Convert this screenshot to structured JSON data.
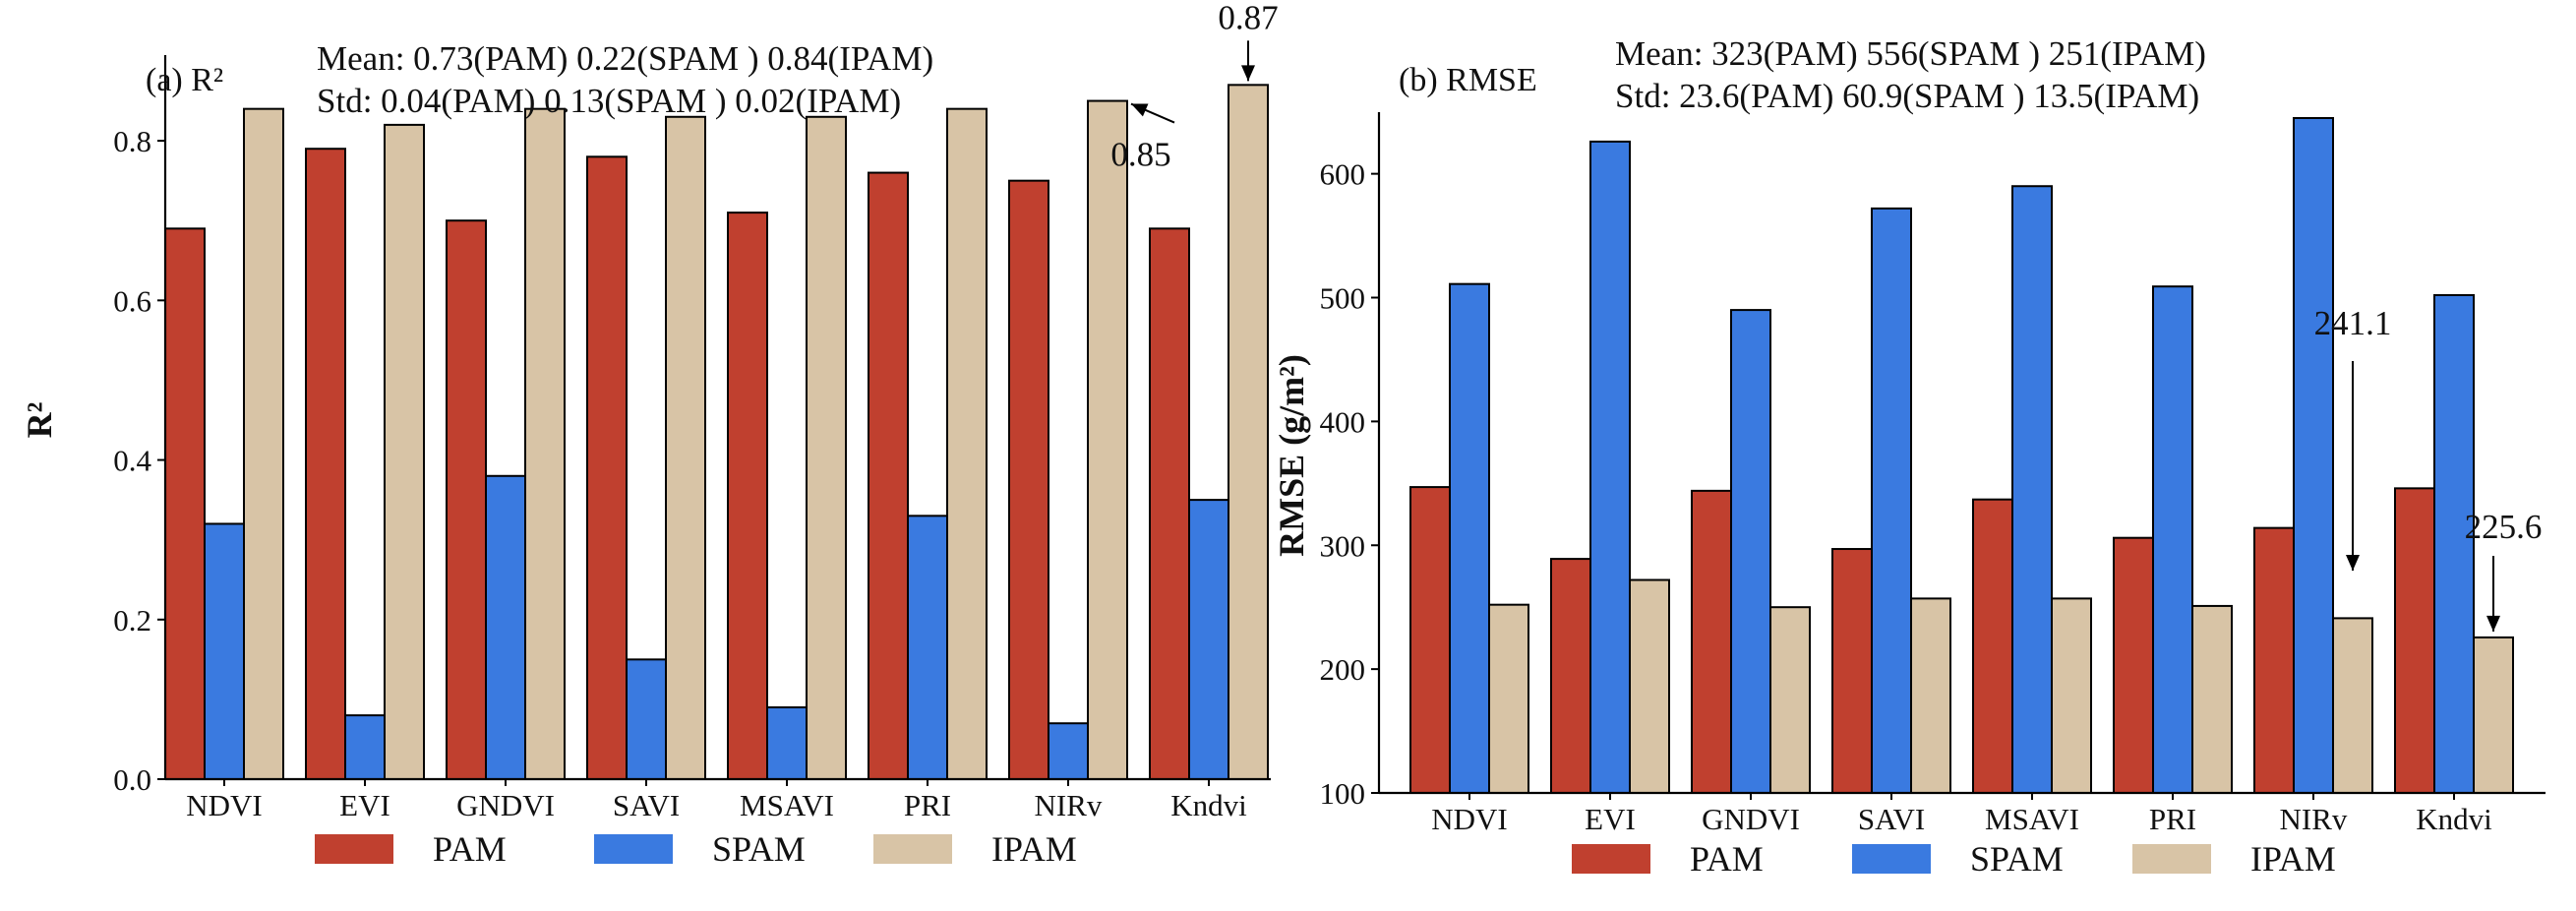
{
  "colors": {
    "PAM": "#C0402F",
    "SPAM": "#3A7AE0",
    "IPAM": "#D8C4A6"
  },
  "chart_data": [
    {
      "type": "bar",
      "title": "(a) R²",
      "xlabel": "",
      "ylabel": "R²",
      "ylim": [
        0,
        0.9
      ],
      "yticks": [
        "0.0",
        "0.2",
        "0.4",
        "0.6",
        "0.8"
      ],
      "ytick_values": [
        0,
        0.2,
        0.4,
        0.6,
        0.8
      ],
      "categories": [
        "NDVI",
        "EVI",
        "GNDVI",
        "SAVI",
        "MSAVI",
        "PRI",
        "NIRv",
        "Kndvi"
      ],
      "series": [
        {
          "name": "PAM",
          "values": [
            0.69,
            0.79,
            0.7,
            0.78,
            0.71,
            0.76,
            0.75,
            0.69
          ]
        },
        {
          "name": "SPAM",
          "values": [
            0.32,
            0.08,
            0.38,
            0.15,
            0.09,
            0.33,
            0.07,
            0.35
          ]
        },
        {
          "name": "IPAM",
          "values": [
            0.84,
            0.82,
            0.84,
            0.83,
            0.83,
            0.84,
            0.85,
            0.87
          ]
        }
      ],
      "stats": {
        "mean": "Mean: 0.73(PAM)  0.22(SPAM ) 0.84(IPAM)",
        "std": "Std:   0.04(PAM)  0.13(SPAM ) 0.02(IPAM)"
      },
      "annotations": [
        {
          "text": "0.85",
          "category": "NIRv",
          "series": "IPAM",
          "value": 0.85
        },
        {
          "text": "0.87",
          "category": "Kndvi",
          "series": "IPAM",
          "value": 0.87
        }
      ],
      "legend": [
        "PAM",
        "SPAM",
        "IPAM"
      ],
      "legend_position": "bottom"
    },
    {
      "type": "bar",
      "title": "(b) RMSE",
      "xlabel": "",
      "ylabel": "RMSE (g/m²)",
      "ylim": [
        100,
        645
      ],
      "yticks": [
        "100",
        "200",
        "300",
        "400",
        "500",
        "600"
      ],
      "ytick_values": [
        100,
        200,
        300,
        400,
        500,
        600
      ],
      "categories": [
        "NDVI",
        "EVI",
        "GNDVI",
        "SAVI",
        "MSAVI",
        "PRI",
        "NIRv",
        "Kndvi"
      ],
      "series": [
        {
          "name": "PAM",
          "values": [
            347,
            289,
            344,
            297,
            337,
            306,
            314,
            346
          ]
        },
        {
          "name": "SPAM",
          "values": [
            511,
            626,
            490,
            572,
            590,
            509,
            645,
            502
          ]
        },
        {
          "name": "IPAM",
          "values": [
            252,
            272,
            250,
            257,
            257,
            251,
            241.1,
            225.6
          ]
        }
      ],
      "stats": {
        "mean": "Mean: 323(PAM)  556(SPAM ) 251(IPAM)",
        "std": "Std:  23.6(PAM)  60.9(SPAM ) 13.5(IPAM)"
      },
      "annotations": [
        {
          "text": "241.1",
          "category": "NIRv",
          "series": "IPAM",
          "value": 241.1
        },
        {
          "text": "225.6",
          "category": "Kndvi",
          "series": "IPAM",
          "value": 225.6
        }
      ],
      "legend": [
        "PAM",
        "SPAM",
        "IPAM"
      ],
      "legend_position": "bottom"
    }
  ]
}
